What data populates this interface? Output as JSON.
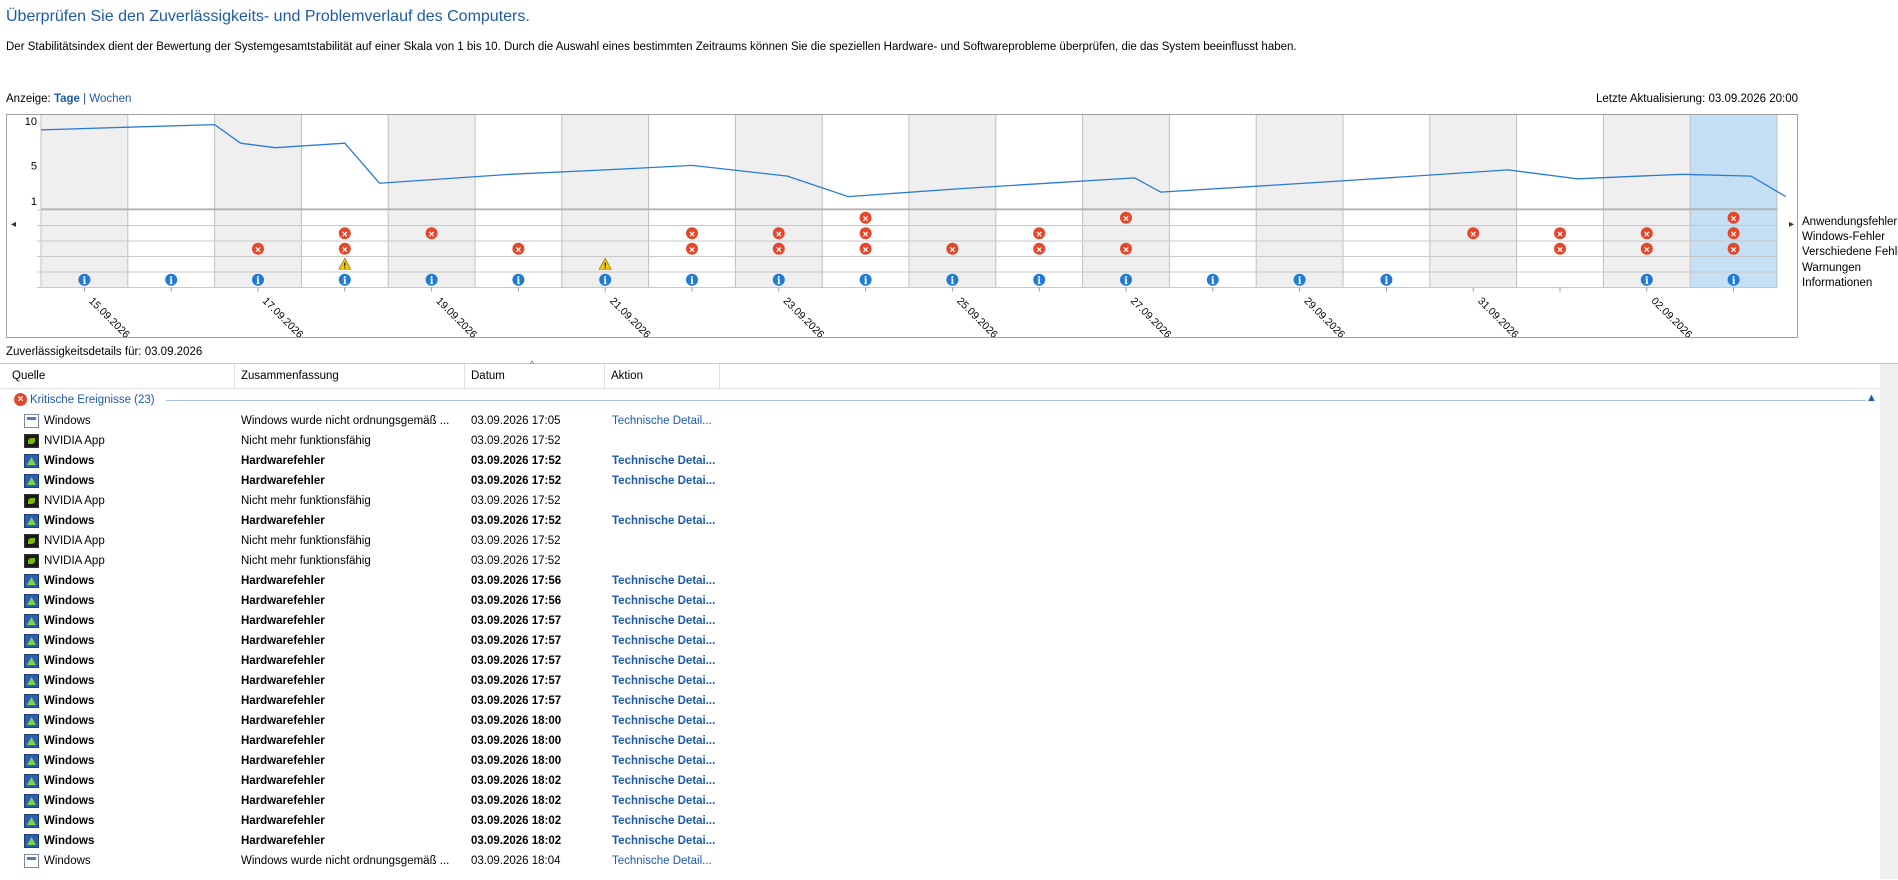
{
  "title": "Überprüfen Sie den Zuverlässigkeits- und Problemverlauf des Computers.",
  "description": "Der Stabilitätsindex dient der Bewertung der Systemgesamtstabilität auf einer Skala von 1 bis 10. Durch die Auswahl eines bestimmten Zeitraums können Sie die speziellen Hardware- und Softwareprobleme überprüfen, die das System beeinflusst haben.",
  "view": {
    "label": "Anzeige:",
    "days": "Tage",
    "separator": "|",
    "weeks": "Wochen"
  },
  "last_update": "Letzte Aktualisierung: 03.09.2026 20:00",
  "chart_data": {
    "type": "line",
    "y_axis_labels": [
      "10",
      "5",
      "1"
    ],
    "ylim": [
      1,
      10
    ],
    "date_labels": [
      "15.09.2026",
      "17.09.2026",
      "19.09.2026",
      "21.09.2026",
      "23.09.2026",
      "25.09.2026",
      "27.09.2026",
      "29.09.2026",
      "31.09.2026",
      "02.09.2026"
    ],
    "stability_index": [
      [
        0,
        9.0
      ],
      [
        1,
        9.3
      ],
      [
        2,
        9.6
      ],
      [
        2.3,
        7.5
      ],
      [
        2.7,
        7.0
      ],
      [
        3.5,
        7.5
      ],
      [
        3.9,
        3.0
      ],
      [
        5.4,
        4.0
      ],
      [
        6.5,
        4.5
      ],
      [
        7.5,
        5.0
      ],
      [
        8.6,
        3.8
      ],
      [
        9.3,
        1.5
      ],
      [
        10.6,
        2.4
      ],
      [
        11.6,
        3.0
      ],
      [
        12.6,
        3.6
      ],
      [
        12.9,
        2.0
      ],
      [
        14.9,
        3.2
      ],
      [
        16.9,
        4.5
      ],
      [
        17.7,
        3.5
      ],
      [
        18.9,
        4.0
      ],
      [
        19.7,
        3.8
      ],
      [
        20.1,
        1.5
      ]
    ],
    "row_labels": [
      "Anwendungsfehler",
      "Windows-Fehler",
      "Verschiedene Fehler",
      "Warnungen",
      "Informationen"
    ],
    "events": {
      "Anwendungsfehler": [
        9,
        12,
        19
      ],
      "Windows-Fehler": [
        3,
        4,
        7,
        8,
        9,
        11,
        16,
        17,
        18,
        19
      ],
      "Verschiedene Fehler": [
        2,
        3,
        5,
        7,
        8,
        9,
        10,
        11,
        12,
        17,
        18,
        19
      ],
      "Warnungen": [
        3,
        6
      ],
      "Informationen": [
        0,
        1,
        2,
        3,
        4,
        5,
        6,
        7,
        8,
        9,
        10,
        11,
        12,
        13,
        14,
        15,
        18,
        19
      ]
    },
    "selected_day": 19,
    "grid": true
  },
  "chart_labels": {
    "row0": "Anwendungsfehler",
    "row1": "Windows-Fehler",
    "row2": "Verschiedene Fehler",
    "row3": "Warnungen",
    "row4": "Informationen"
  },
  "details_label": "Zuverlässigkeitsdetails für: 03.09.2026",
  "table": {
    "headers": [
      "Quelle",
      "Zusammenfassung",
      "Datum",
      "Aktion"
    ],
    "group_label": "Kritische Ereignisse (23)",
    "rows": [
      {
        "icon": "windows-icon",
        "source": "Windows",
        "summary": "Windows wurde nicht ordnungsgemäß ...",
        "date": "03.09.2026 17:05",
        "action": "Technische Detail...",
        "bold": false
      },
      {
        "icon": "nvidia-icon",
        "source": "NVIDIA App",
        "summary": "Nicht mehr funktionsfähig",
        "date": "03.09.2026 17:52",
        "action": "",
        "bold": false
      },
      {
        "icon": "hardware-icon",
        "source": "Windows",
        "summary": "Hardwarefehler",
        "date": "03.09.2026 17:52",
        "action": "Technische Detai...",
        "bold": true
      },
      {
        "icon": "hardware-icon",
        "source": "Windows",
        "summary": "Hardwarefehler",
        "date": "03.09.2026 17:52",
        "action": "Technische Detai...",
        "bold": true
      },
      {
        "icon": "nvidia-icon",
        "source": "NVIDIA App",
        "summary": "Nicht mehr funktionsfähig",
        "date": "03.09.2026 17:52",
        "action": "",
        "bold": false
      },
      {
        "icon": "hardware-icon",
        "source": "Windows",
        "summary": "Hardwarefehler",
        "date": "03.09.2026 17:52",
        "action": "Technische Detai...",
        "bold": true
      },
      {
        "icon": "nvidia-icon",
        "source": "NVIDIA App",
        "summary": "Nicht mehr funktionsfähig",
        "date": "03.09.2026 17:52",
        "action": "",
        "bold": false
      },
      {
        "icon": "nvidia-icon",
        "source": "NVIDIA App",
        "summary": "Nicht mehr funktionsfähig",
        "date": "03.09.2026 17:52",
        "action": "",
        "bold": false
      },
      {
        "icon": "hardware-icon",
        "source": "Windows",
        "summary": "Hardwarefehler",
        "date": "03.09.2026 17:56",
        "action": "Technische Detai...",
        "bold": true
      },
      {
        "icon": "hardware-icon",
        "source": "Windows",
        "summary": "Hardwarefehler",
        "date": "03.09.2026 17:56",
        "action": "Technische Detai...",
        "bold": true
      },
      {
        "icon": "hardware-icon",
        "source": "Windows",
        "summary": "Hardwarefehler",
        "date": "03.09.2026 17:57",
        "action": "Technische Detai...",
        "bold": true
      },
      {
        "icon": "hardware-icon",
        "source": "Windows",
        "summary": "Hardwarefehler",
        "date": "03.09.2026 17:57",
        "action": "Technische Detai...",
        "bold": true
      },
      {
        "icon": "hardware-icon",
        "source": "Windows",
        "summary": "Hardwarefehler",
        "date": "03.09.2026 17:57",
        "action": "Technische Detai...",
        "bold": true
      },
      {
        "icon": "hardware-icon",
        "source": "Windows",
        "summary": "Hardwarefehler",
        "date": "03.09.2026 17:57",
        "action": "Technische Detai...",
        "bold": true
      },
      {
        "icon": "hardware-icon",
        "source": "Windows",
        "summary": "Hardwarefehler",
        "date": "03.09.2026 17:57",
        "action": "Technische Detai...",
        "bold": true
      },
      {
        "icon": "hardware-icon",
        "source": "Windows",
        "summary": "Hardwarefehler",
        "date": "03.09.2026 18:00",
        "action": "Technische Detai...",
        "bold": true
      },
      {
        "icon": "hardware-icon",
        "source": "Windows",
        "summary": "Hardwarefehler",
        "date": "03.09.2026 18:00",
        "action": "Technische Detai...",
        "bold": true
      },
      {
        "icon": "hardware-icon",
        "source": "Windows",
        "summary": "Hardwarefehler",
        "date": "03.09.2026 18:00",
        "action": "Technische Detai...",
        "bold": true
      },
      {
        "icon": "hardware-icon",
        "source": "Windows",
        "summary": "Hardwarefehler",
        "date": "03.09.2026 18:02",
        "action": "Technische Detai...",
        "bold": true
      },
      {
        "icon": "hardware-icon",
        "source": "Windows",
        "summary": "Hardwarefehler",
        "date": "03.09.2026 18:02",
        "action": "Technische Detai...",
        "bold": true
      },
      {
        "icon": "hardware-icon",
        "source": "Windows",
        "summary": "Hardwarefehler",
        "date": "03.09.2026 18:02",
        "action": "Technische Detai...",
        "bold": true
      },
      {
        "icon": "hardware-icon",
        "source": "Windows",
        "summary": "Hardwarefehler",
        "date": "03.09.2026 18:02",
        "action": "Technische Detai...",
        "bold": true
      },
      {
        "icon": "windows-icon",
        "source": "Windows",
        "summary": "Windows wurde nicht ordnungsgemäß ...",
        "date": "03.09.2026 18:04",
        "action": "Technische Detail...",
        "bold": false
      }
    ]
  }
}
